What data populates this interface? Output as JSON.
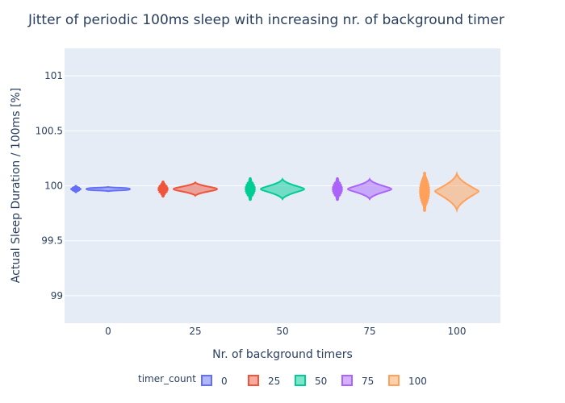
{
  "chart_data": {
    "type": "violin",
    "title": "Jitter of periodic 100ms sleep with increasing nr. of background timer",
    "xlabel": "Nr. of background timers",
    "ylabel": "Actual Sleep Duration / 100ms [%]",
    "categories": [
      "0",
      "25",
      "50",
      "75",
      "100"
    ],
    "yticks": [
      "99",
      "99.5",
      "100",
      "100.5",
      "101"
    ],
    "ylim": [
      98.75,
      101.25
    ],
    "legend": {
      "title": "timer_count",
      "position": "bottom"
    },
    "series": [
      {
        "name": "0",
        "color": "#636efa",
        "median": 99.97,
        "min": 99.95,
        "max": 99.99
      },
      {
        "name": "25",
        "color": "#ef553b",
        "median": 99.97,
        "min": 99.91,
        "max": 100.03
      },
      {
        "name": "50",
        "color": "#00cc96",
        "median": 99.97,
        "min": 99.88,
        "max": 100.06
      },
      {
        "name": "75",
        "color": "#ab63fa",
        "median": 99.97,
        "min": 99.88,
        "max": 100.06
      },
      {
        "name": "100",
        "color": "#ffa15a",
        "median": 99.95,
        "min": 99.78,
        "max": 100.11
      }
    ]
  }
}
